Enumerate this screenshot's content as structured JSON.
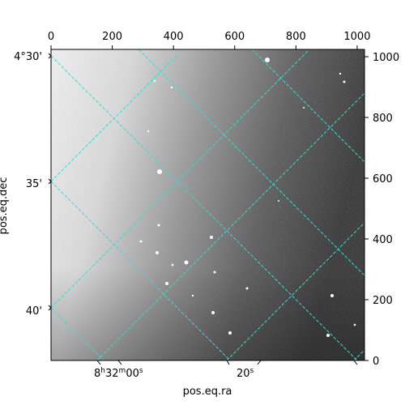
{
  "chart_data": {
    "type": "image",
    "colormap": "gray_r",
    "pixel_axes": {
      "x_ticks": [
        "0",
        "200",
        "400",
        "600",
        "800",
        "1000"
      ],
      "x_range": [
        0,
        1024
      ],
      "y_ticks": [
        "0",
        "200",
        "400",
        "600",
        "800",
        "1000"
      ],
      "y_range": [
        0,
        1024
      ]
    },
    "world_axes": {
      "xlabel": "pos.eq.ra",
      "ylabel": "pos.eq.dec",
      "ra_ticks": [
        {
          "h": "8",
          "m": "32",
          "s": "00",
          "label_x": "8h32m00s"
        },
        {
          "s": "20",
          "label_x": "20s"
        }
      ],
      "dec_ticks": [
        "4°30'",
        "35'",
        "40'"
      ]
    },
    "grid": {
      "on": true,
      "color": "#3fd6d6",
      "style": "dashed"
    },
    "colors": {
      "grid": "#3fd6d6",
      "frame": "#000000"
    }
  }
}
